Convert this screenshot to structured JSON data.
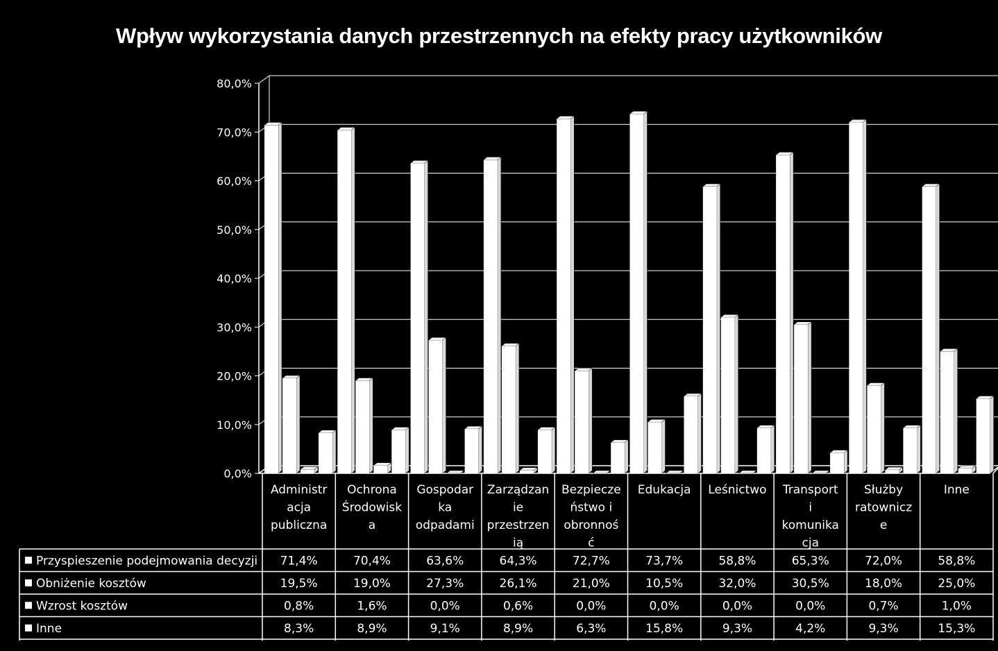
{
  "chart_data": {
    "type": "bar",
    "title": "Wpływ wykorzystania danych przestrzennych na efekty pracy użytkowników",
    "categories": [
      "Administracja publiczna",
      "Ochrona Środowiska",
      "Gospodarka odpadami",
      "Zarządzanie przestrzenią",
      "Bezpieczeństwo i obronność",
      "Edukacja",
      "Leśnictwo",
      "Transport i komunikacja",
      "Służby ratownicze",
      "Inne"
    ],
    "category_label_lines": [
      [
        "Administr",
        "acja",
        "publiczna"
      ],
      [
        "Ochrona",
        "Środowisk",
        "a"
      ],
      [
        "Gospodar",
        "ka",
        "odpadami"
      ],
      [
        "Zarządzan",
        "ie",
        "przestrzen",
        "ią"
      ],
      [
        "Bezpiecze",
        "ństwo i",
        "obronnoś",
        "ć"
      ],
      [
        "Edukacja"
      ],
      [
        "Leśnictwo"
      ],
      [
        "Transport",
        "i",
        "komunika",
        "cja"
      ],
      [
        "Służby",
        "ratownicz",
        "e"
      ],
      [
        "Inne"
      ]
    ],
    "series": [
      {
        "name": "Przyspieszenie podejmowania decyzji",
        "values": [
          71.4,
          70.4,
          63.6,
          64.3,
          72.7,
          73.7,
          58.8,
          65.3,
          72.0,
          58.8
        ],
        "labels": [
          "71,4%",
          "70,4%",
          "63,6%",
          "64,3%",
          "72,7%",
          "73,7%",
          "58,8%",
          "65,3%",
          "72,0%",
          "58,8%"
        ]
      },
      {
        "name": "Obniżenie kosztów",
        "values": [
          19.5,
          19.0,
          27.3,
          26.1,
          21.0,
          10.5,
          32.0,
          30.5,
          18.0,
          25.0
        ],
        "labels": [
          "19,5%",
          "19,0%",
          "27,3%",
          "26,1%",
          "21,0%",
          "10,5%",
          "32,0%",
          "30,5%",
          "18,0%",
          "25,0%"
        ]
      },
      {
        "name": "Wzrost kosztów",
        "values": [
          0.8,
          1.6,
          0.0,
          0.6,
          0.0,
          0.0,
          0.0,
          0.0,
          0.7,
          1.0
        ],
        "labels": [
          "0,8%",
          "1,6%",
          "0,0%",
          "0,6%",
          "0,0%",
          "0,0%",
          "0,0%",
          "0,0%",
          "0,7%",
          "1,0%"
        ]
      },
      {
        "name": "Inne",
        "values": [
          8.3,
          8.9,
          9.1,
          8.9,
          6.3,
          15.8,
          9.3,
          4.2,
          9.3,
          15.3
        ],
        "labels": [
          "8,3%",
          "8,9%",
          "9,1%",
          "8,9%",
          "6,3%",
          "15,8%",
          "9,3%",
          "4,2%",
          "9,3%",
          "15,3%"
        ]
      }
    ],
    "ylim": [
      0,
      80
    ],
    "y_ticks": [
      "0,0%",
      "10,0%",
      "20,0%",
      "30,0%",
      "40,0%",
      "50,0%",
      "60,0%",
      "70,0%",
      "80,0%"
    ],
    "grid": true,
    "legend": "data-table",
    "colors": {
      "background": "#000000",
      "bars": "#ffffff",
      "lines": "#ffffff"
    }
  }
}
